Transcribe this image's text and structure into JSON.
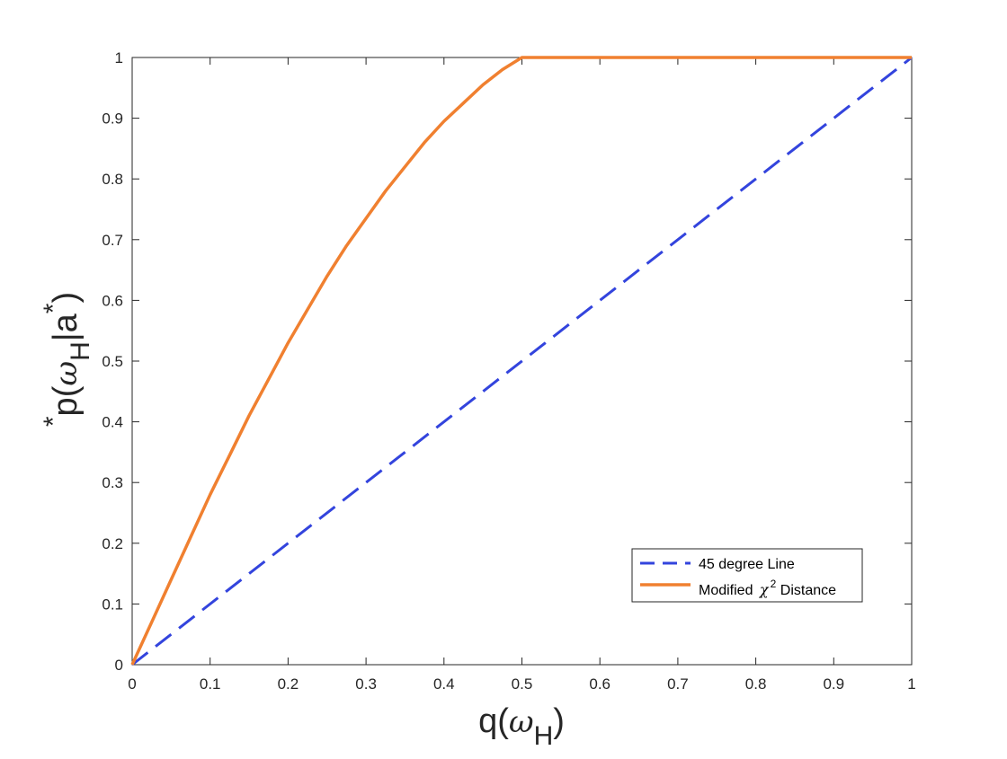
{
  "chart_data": {
    "type": "line",
    "xlabel": {
      "main": "q(",
      "greek": "ω",
      "sub": "H",
      "close": ")"
    },
    "ylabel": {
      "sup1": "*",
      "base": "p",
      "open": "(",
      "greek": "ω",
      "sub": "H",
      "bar": "|a",
      "sup2": "*",
      "close": ")"
    },
    "xlim": [
      0,
      1
    ],
    "ylim": [
      0,
      1
    ],
    "xticks": [
      "0",
      "0.1",
      "0.2",
      "0.3",
      "0.4",
      "0.5",
      "0.6",
      "0.7",
      "0.8",
      "0.9",
      "1"
    ],
    "yticks": [
      "0",
      "0.1",
      "0.2",
      "0.3",
      "0.4",
      "0.5",
      "0.6",
      "0.7",
      "0.8",
      "0.9",
      "1"
    ],
    "grid": false,
    "legend_position": "bottom-right",
    "series": [
      {
        "name": "45 degree Line",
        "style": "dashed",
        "color": "#3344dd",
        "x": [
          0,
          1
        ],
        "y": [
          0,
          1
        ]
      },
      {
        "name_prefix": "Modified ",
        "name_greek": "χ",
        "name_sup": "2",
        "name_suffix": " Distance",
        "style": "solid",
        "color": "#f08030",
        "x": [
          0,
          0.025,
          0.05,
          0.075,
          0.1,
          0.125,
          0.15,
          0.175,
          0.2,
          0.225,
          0.25,
          0.275,
          0.3,
          0.325,
          0.35,
          0.375,
          0.4,
          0.425,
          0.45,
          0.475,
          0.5,
          0.6,
          0.7,
          0.8,
          0.9,
          1.0
        ],
        "y": [
          0,
          0.07,
          0.14,
          0.21,
          0.28,
          0.345,
          0.41,
          0.47,
          0.53,
          0.585,
          0.64,
          0.69,
          0.735,
          0.78,
          0.82,
          0.86,
          0.895,
          0.925,
          0.955,
          0.98,
          1.0,
          1.0,
          1.0,
          1.0,
          1.0,
          1.0
        ]
      }
    ]
  }
}
